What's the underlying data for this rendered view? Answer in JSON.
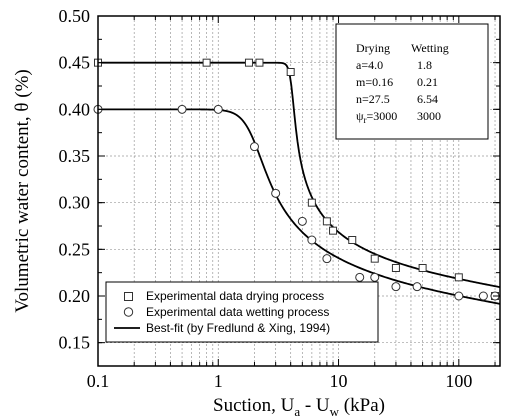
{
  "chart_data": {
    "type": "scatter",
    "title": "",
    "xlabel": {
      "main": "Suction, U",
      "sub1": "a",
      "mid": " - U",
      "sub2": "w",
      "tail": " (kPa)"
    },
    "ylabel": "Volumetric water content, θ (%)",
    "x_scale": "log",
    "xlim": [
      0.1,
      220
    ],
    "ylim": [
      0.125,
      0.5
    ],
    "x_ticks": [
      {
        "value": 0.1,
        "label": "0.1"
      },
      {
        "value": 1,
        "label": "1"
      },
      {
        "value": 10,
        "label": "10"
      },
      {
        "value": 100,
        "label": "100"
      }
    ],
    "y_ticks": [
      {
        "value": 0.15,
        "label": "0.15"
      },
      {
        "value": 0.2,
        "label": "0.20"
      },
      {
        "value": 0.25,
        "label": "0.25"
      },
      {
        "value": 0.3,
        "label": "0.30"
      },
      {
        "value": 0.35,
        "label": "0.35"
      },
      {
        "value": 0.4,
        "label": "0.40"
      },
      {
        "value": 0.45,
        "label": "0.45"
      },
      {
        "value": 0.5,
        "label": "0.50"
      }
    ],
    "grid": true,
    "legend_position": "bottom-left",
    "series": [
      {
        "name": "Experimental data drying process",
        "marker": "square",
        "x": [
          0.1,
          0.8,
          1.8,
          2.2,
          4,
          6,
          8,
          9,
          13,
          20,
          30,
          50,
          100,
          200
        ],
        "y": [
          0.45,
          0.45,
          0.45,
          0.45,
          0.44,
          0.3,
          0.28,
          0.27,
          0.26,
          0.24,
          0.23,
          0.23,
          0.22,
          0.2
        ]
      },
      {
        "name": "Experimental data wetting process",
        "marker": "circle",
        "x": [
          0.1,
          0.5,
          1,
          2,
          3,
          5,
          6,
          8,
          15,
          20,
          30,
          45,
          100,
          160,
          200
        ],
        "y": [
          0.4,
          0.4,
          0.4,
          0.36,
          0.31,
          0.28,
          0.26,
          0.24,
          0.22,
          0.22,
          0.21,
          0.21,
          0.2,
          0.2,
          0.2
        ]
      },
      {
        "name": "Best-fit (by Fredlund & Xing, 1994)",
        "marker": "line",
        "fits": [
          {
            "theta_s": 0.45,
            "a": 4.0,
            "m": 0.16,
            "n": 27.5,
            "psi_r": 3000
          },
          {
            "theta_s": 0.4,
            "a": 1.8,
            "m": 0.21,
            "n": 6.54,
            "psi_r": 3000
          }
        ]
      }
    ],
    "parameters": {
      "headers": [
        "Drying",
        "Wetting"
      ],
      "rows": [
        {
          "label": "a=4.0",
          "wetting": "1.8"
        },
        {
          "label": "m=0.16",
          "wetting": "0.21"
        },
        {
          "label": "n=27.5",
          "wetting": "6.54"
        },
        {
          "label_sym": "ψ",
          "label_sub": "r",
          "label_rest": "=3000",
          "wetting": "3000"
        }
      ]
    }
  }
}
